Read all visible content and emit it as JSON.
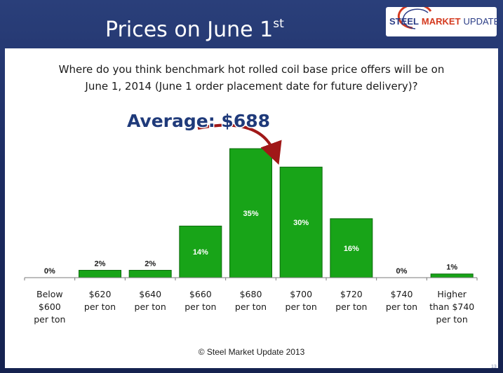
{
  "slide": {
    "title": "Prices on June 1",
    "title_superscript": "st",
    "logo": {
      "word1": "STEEL",
      "word2": "MARKET",
      "word3": "UPDATE"
    },
    "copyright": "© Steel Market Update 2013",
    "slide_number": "13"
  },
  "colors": {
    "bar": "#18a418",
    "bar_border": "#0b6a0b",
    "arrow": "#a01818",
    "average_text": "#1f3a7a",
    "background": "#1c2c63"
  },
  "chart_data": {
    "type": "bar",
    "title": "Where do you think benchmark hot rolled coil base price offers will be on\nJune 1, 2014 (June 1 order placement date for future delivery)?",
    "categories": [
      "Below\n$600\nper ton",
      "$620\nper ton",
      "$640\nper ton",
      "$660\nper ton",
      "$680\nper ton",
      "$700\nper ton",
      "$720\nper ton",
      "$740\nper ton",
      "Higher\nthan $740\nper ton"
    ],
    "values": [
      0,
      2,
      2,
      14,
      35,
      30,
      16,
      0,
      1
    ],
    "data_labels": [
      "0%",
      "2%",
      "2%",
      "14%",
      "35%",
      "30%",
      "16%",
      "0%",
      "1%"
    ],
    "ylim": [
      0,
      35
    ],
    "grid": false,
    "annotation": "Average: $688",
    "annotation_target_category": "$680\nper ton"
  }
}
